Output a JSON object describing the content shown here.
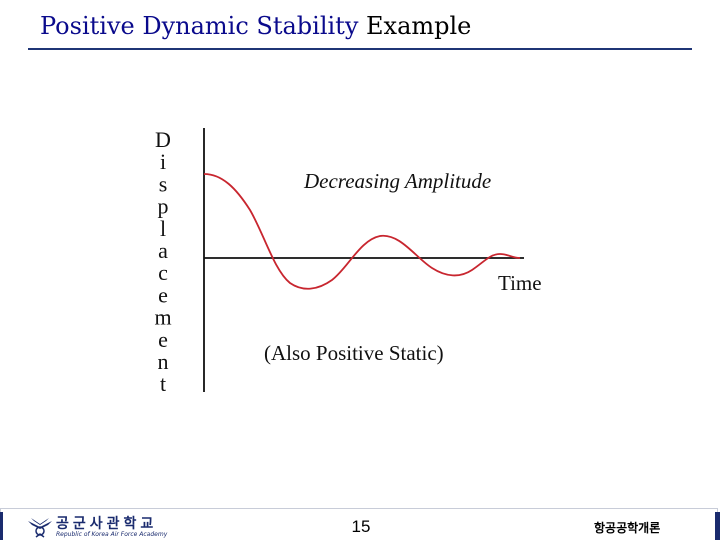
{
  "slide": {
    "title_part1": "Positive Dynamic Stability",
    "title_part2": " Example",
    "title_accent_color": "#0a0a8c"
  },
  "diagram": {
    "y_axis_label_letters": [
      "D",
      "i",
      "s",
      "p",
      "l",
      "a",
      "c",
      "e",
      "m",
      "e",
      "n",
      "t"
    ],
    "curve_label": "Decreasing Amplitude",
    "x_axis_label": "Time",
    "note": "(Also Positive Static)",
    "curve_color": "#c8262f"
  },
  "footer": {
    "logo_name": "공군사관학교",
    "logo_subtitle": "Republic of Korea Air Force Academy",
    "page_number": "15",
    "course_name": "항공공학개론",
    "bar_color": "#1a2b6e"
  }
}
